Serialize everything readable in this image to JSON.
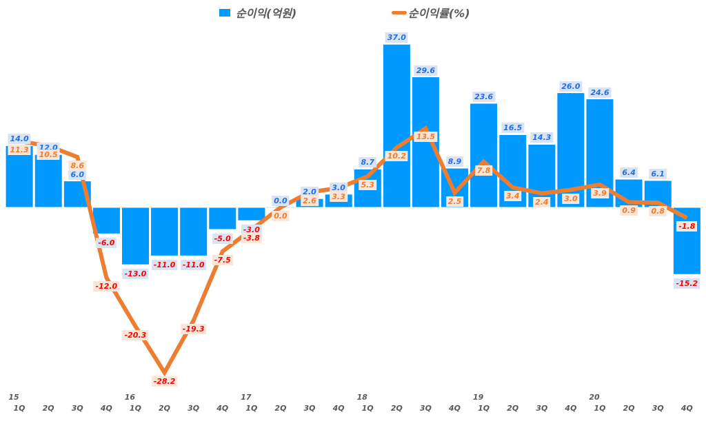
{
  "chart_data": {
    "type": "bar+line",
    "title": "",
    "legend": {
      "position": "top",
      "entries": [
        {
          "name": "순이익(억원)",
          "type": "bar",
          "color": "#0099ff"
        },
        {
          "name": "순이익률(%)",
          "type": "line",
          "color": "#ed7d31"
        }
      ]
    },
    "categories": [
      "15 1Q",
      "2Q",
      "3Q",
      "4Q",
      "16 1Q",
      "2Q",
      "3Q",
      "4Q",
      "17 1Q",
      "2Q",
      "3Q",
      "4Q",
      "18 1Q",
      "2Q",
      "3Q",
      "4Q",
      "19 1Q",
      "2Q",
      "3Q",
      "4Q",
      "20 1Q",
      "2Q",
      "3Q",
      "4Q"
    ],
    "x_tick_labels": {
      "years": [
        "15",
        "",
        "",
        "",
        "16",
        "",
        "",
        "",
        "17",
        "",
        "",
        "",
        "18",
        "",
        "",
        "",
        "19",
        "",
        "",
        "",
        "20",
        "",
        "",
        ""
      ],
      "quarters": [
        "1Q",
        "2Q",
        "3Q",
        "4Q",
        "1Q",
        "2Q",
        "3Q",
        "4Q",
        "1Q",
        "2Q",
        "3Q",
        "4Q",
        "1Q",
        "2Q",
        "3Q",
        "4Q",
        "1Q",
        "2Q",
        "3Q",
        "4Q",
        "1Q",
        "2Q",
        "3Q",
        "4Q"
      ]
    },
    "series": [
      {
        "name": "순이익(억원)",
        "type": "bar",
        "color": "#0099ff",
        "values": [
          14.0,
          12.0,
          6.0,
          -6.0,
          -13.0,
          -11.0,
          -11.0,
          -5.0,
          -3.0,
          0.0,
          2.0,
          3.0,
          8.7,
          37.0,
          29.6,
          8.9,
          23.6,
          16.5,
          14.3,
          26.0,
          24.6,
          6.4,
          6.1,
          -15.2
        ],
        "labels": [
          "14.0",
          "12.0",
          "6.0",
          "-6.0",
          "-13.0",
          "-11.0",
          "-11.0",
          "-5.0",
          "-3.0",
          "0.0",
          "2.0",
          "3.0",
          "8.7",
          "37.0",
          "29.6",
          "8.9",
          "23.6",
          "16.5",
          "14.3",
          "26.0",
          "24.6",
          "6.4",
          "6.1",
          "-15.2"
        ]
      },
      {
        "name": "순이익률(%)",
        "type": "line",
        "color": "#ed7d31",
        "values": [
          11.3,
          10.5,
          8.6,
          -12.0,
          -20.3,
          -28.2,
          -19.3,
          -7.5,
          -3.8,
          0.0,
          2.6,
          3.3,
          5.3,
          10.2,
          13.5,
          2.5,
          7.8,
          3.4,
          2.4,
          3.0,
          3.9,
          0.9,
          0.8,
          -1.8
        ],
        "labels": [
          "11.3",
          "10.5",
          "8.6",
          "-12.0",
          "-20.3",
          "-28.2",
          "-19.3",
          "-7.5",
          "-3.8",
          "0.0",
          "2.6",
          "3.3",
          "5.3",
          "10.2",
          "13.5",
          "2.5",
          "7.8",
          "3.4",
          "2.4",
          "3.0",
          "3.9",
          "0.9",
          "0.8",
          "-1.8"
        ]
      }
    ],
    "xlabel": "",
    "ylabel": "",
    "grid": false,
    "colors": {
      "bar": "#0099ff",
      "line": "#ed7d31",
      "positive_bar_label": "#1f6fe5",
      "positive_line_label": "#ed7d31",
      "negative_label": "#ff0000",
      "bar_label_bg": "#dae3f3",
      "line_label_bg": "#fbe5d6"
    }
  },
  "legend": {
    "bar_label": "순이익(억원)",
    "line_label": "순이익률(%)"
  }
}
